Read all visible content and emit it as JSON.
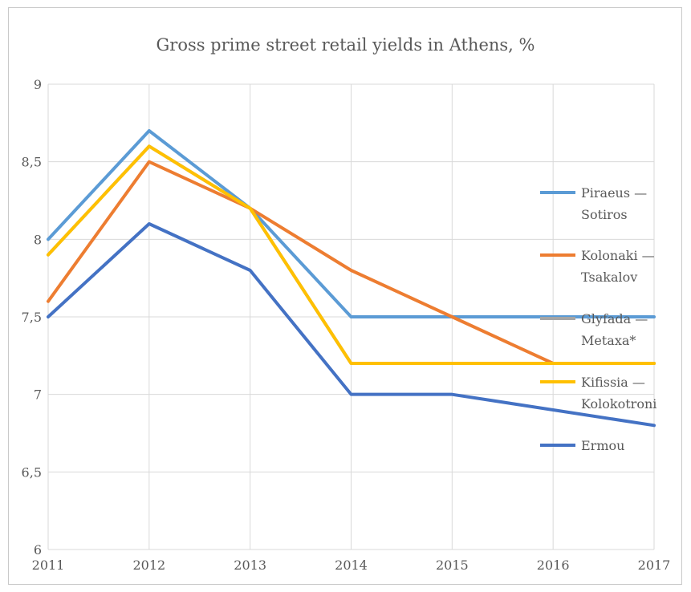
{
  "chart_data": {
    "type": "line",
    "title": "Gross prime street retail yields in Athens, %",
    "xlabel": "",
    "ylabel": "",
    "x": [
      "2011",
      "2012",
      "2013",
      "2014",
      "2015",
      "2016",
      "2017"
    ],
    "ylim": [
      6,
      9
    ],
    "yticks": [
      "6",
      "6,5",
      "7",
      "7,5",
      "8",
      "8,5",
      "9"
    ],
    "ytick_values": [
      6,
      6.5,
      7,
      7.5,
      8,
      8.5,
      9
    ],
    "grid": true,
    "legend_position": "right",
    "series": [
      {
        "name": "Piraeus — Sotiros",
        "label_lines": [
          "Piraeus —",
          "Sotiros"
        ],
        "color": "#5B9BD5",
        "values": [
          8.0,
          8.7,
          8.2,
          7.5,
          7.5,
          7.5,
          7.5
        ]
      },
      {
        "name": "Kolonaki — Tsakalov",
        "label_lines": [
          "Kolonaki —",
          "Tsakalov"
        ],
        "color": "#ED7D31",
        "values": [
          7.6,
          8.5,
          8.2,
          7.8,
          7.5,
          7.2,
          7.2
        ]
      },
      {
        "name": "Glyfada — Metaxa*",
        "label_lines": [
          "Glyfada —",
          "Metaxa*"
        ],
        "color": "#A5A5A5",
        "values": [
          7.9,
          8.6,
          8.2,
          7.2,
          7.2,
          7.2,
          7.2
        ]
      },
      {
        "name": "Kifissia — Kolokotroni",
        "label_lines": [
          "Kifissia —",
          "Kolokotroni"
        ],
        "color": "#FFC000",
        "values": [
          7.9,
          8.6,
          8.2,
          7.2,
          7.2,
          7.2,
          7.2
        ]
      },
      {
        "name": "Ermou",
        "label_lines": [
          "Ermou"
        ],
        "color": "#4472C4",
        "values": [
          7.5,
          8.1,
          7.8,
          7.0,
          7.0,
          6.9,
          6.8
        ]
      }
    ]
  }
}
